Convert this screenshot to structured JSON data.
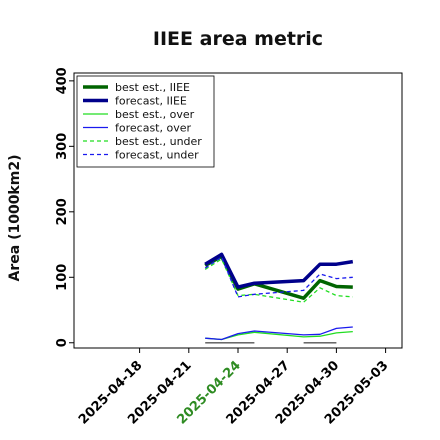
{
  "chart_data": {
    "type": "line",
    "title": "IIEE area metric",
    "ylabel": "Area (1000km2)",
    "xlabel": "",
    "ylim": [
      -8,
      412
    ],
    "xlim": [
      "2025-04-14",
      "2025-05-04"
    ],
    "y_ticks": [
      0,
      100,
      200,
      300,
      400
    ],
    "x_ticks": [
      {
        "date": "2025-04-18",
        "label": "2025-04-18",
        "color": "#000000"
      },
      {
        "date": "2025-04-21",
        "label": "2025-04-21",
        "color": "#000000"
      },
      {
        "date": "2025-04-24",
        "label": "2025-04-24",
        "color": "#2e8b22"
      },
      {
        "date": "2025-04-27",
        "label": "2025-04-27",
        "color": "#000000"
      },
      {
        "date": "2025-04-30",
        "label": "2025-04-30",
        "color": "#000000"
      },
      {
        "date": "2025-05-03",
        "label": "2025-05-03",
        "color": "#000000"
      }
    ],
    "legend_position": "top-left",
    "grid": false,
    "series": [
      {
        "name": "best est., IIEE",
        "color": "#006400",
        "style": "solid",
        "width": 3.5,
        "points": [
          [
            "2025-04-22",
            118
          ],
          [
            "2025-04-23",
            132
          ],
          [
            "2025-04-24",
            82
          ],
          [
            "2025-04-25",
            90
          ],
          [
            "2025-04-28",
            68
          ],
          [
            "2025-04-29",
            95
          ],
          [
            "2025-04-30",
            86
          ],
          [
            "2025-05-01",
            85
          ]
        ]
      },
      {
        "name": "forecast, IIEE",
        "color": "#00008b",
        "style": "solid",
        "width": 3.5,
        "points": [
          [
            "2025-04-22",
            120
          ],
          [
            "2025-04-23",
            135
          ],
          [
            "2025-04-24",
            85
          ],
          [
            "2025-04-25",
            91
          ],
          [
            "2025-04-28",
            95
          ],
          [
            "2025-04-29",
            120
          ],
          [
            "2025-04-30",
            120
          ],
          [
            "2025-05-01",
            124
          ]
        ]
      },
      {
        "name": "best est., over",
        "color": "#22dd22",
        "style": "solid",
        "width": 1.3,
        "points": [
          [
            "2025-04-22",
            7
          ],
          [
            "2025-04-23",
            5
          ],
          [
            "2025-04-24",
            12
          ],
          [
            "2025-04-25",
            16
          ],
          [
            "2025-04-28",
            9
          ],
          [
            "2025-04-29",
            10
          ],
          [
            "2025-04-30",
            15
          ],
          [
            "2025-05-01",
            17
          ]
        ]
      },
      {
        "name": "forecast, over",
        "color": "#1a1aee",
        "style": "solid",
        "width": 1.3,
        "points": [
          [
            "2025-04-22",
            7
          ],
          [
            "2025-04-23",
            5
          ],
          [
            "2025-04-24",
            14
          ],
          [
            "2025-04-25",
            18
          ],
          [
            "2025-04-28",
            12
          ],
          [
            "2025-04-29",
            13
          ],
          [
            "2025-04-30",
            22
          ],
          [
            "2025-05-01",
            24
          ]
        ]
      },
      {
        "name": "best est., under",
        "color": "#22dd22",
        "style": "dashed",
        "width": 1.3,
        "points": [
          [
            "2025-04-22",
            112
          ],
          [
            "2025-04-23",
            128
          ],
          [
            "2025-04-24",
            72
          ],
          [
            "2025-04-25",
            74
          ],
          [
            "2025-04-28",
            62
          ],
          [
            "2025-04-29",
            84
          ],
          [
            "2025-04-30",
            72
          ],
          [
            "2025-05-01",
            70
          ]
        ]
      },
      {
        "name": "forecast, under",
        "color": "#1a1aee",
        "style": "dashed",
        "width": 1.3,
        "points": [
          [
            "2025-04-22",
            114
          ],
          [
            "2025-04-23",
            131
          ],
          [
            "2025-04-24",
            70
          ],
          [
            "2025-04-25",
            74
          ],
          [
            "2025-04-28",
            80
          ],
          [
            "2025-04-29",
            105
          ],
          [
            "2025-04-30",
            98
          ],
          [
            "2025-05-01",
            100
          ]
        ]
      }
    ],
    "extra_lines": [
      {
        "color": "#555555",
        "width": 1.3,
        "points": [
          [
            "2025-04-22",
            0
          ],
          [
            "2025-04-25",
            0
          ]
        ]
      },
      {
        "color": "#555555",
        "width": 1.3,
        "points": [
          [
            "2025-04-28",
            0
          ],
          [
            "2025-04-30",
            0
          ]
        ]
      }
    ]
  }
}
